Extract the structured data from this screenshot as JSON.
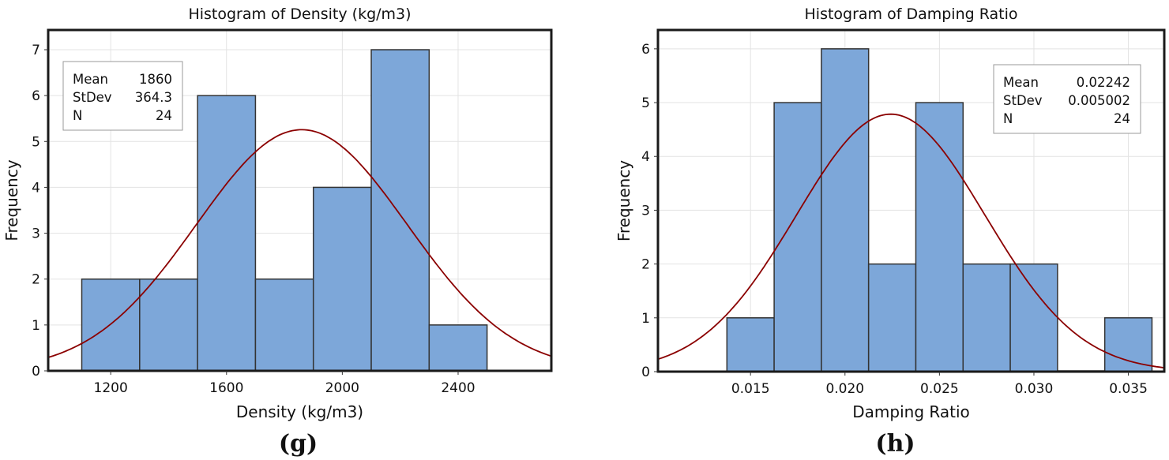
{
  "chart_data": [
    {
      "type": "bar",
      "title": "Histogram of Density (kg/m3)",
      "xlabel": "Density (kg/m3)",
      "ylabel": "Frequency",
      "panel_label": "(g)",
      "bin_centers": [
        1200,
        1400,
        1600,
        1800,
        2000,
        2200,
        2400
      ],
      "bin_width": 200,
      "values": [
        2,
        2,
        6,
        2,
        4,
        7,
        1
      ],
      "xlim": [
        984,
        2722
      ],
      "ylim": [
        0,
        7.43
      ],
      "xticks": [
        1200,
        1600,
        2000,
        2400
      ],
      "xtick_labels": [
        "1200",
        "1600",
        "2000",
        "2400"
      ],
      "yticks": [
        0,
        1,
        2,
        3,
        4,
        5,
        6,
        7
      ],
      "grid": true,
      "fit": "normal",
      "legend_placement": "top-left",
      "stats": [
        {
          "label": "Mean",
          "value": "1860"
        },
        {
          "label": "StDev",
          "value": "364.3"
        },
        {
          "label": "N",
          "value": "24"
        }
      ],
      "mean": 1860,
      "stdev": 364.3,
      "n": 24
    },
    {
      "type": "bar",
      "title": "Histogram of Damping Ratio",
      "xlabel": "Damping Ratio",
      "ylabel": "Frequency",
      "panel_label": "(h)",
      "bin_centers": [
        0.015,
        0.0175,
        0.02,
        0.0225,
        0.025,
        0.0275,
        0.03,
        0.0325,
        0.035
      ],
      "bin_width": 0.0025,
      "values": [
        1,
        5,
        6,
        2,
        5,
        2,
        2,
        0,
        1
      ],
      "xlim": [
        0.0101,
        0.0369
      ],
      "ylim": [
        0,
        6.35
      ],
      "xticks": [
        0.015,
        0.02,
        0.025,
        0.03,
        0.035
      ],
      "xtick_labels": [
        "0.015",
        "0.020",
        "0.025",
        "0.030",
        "0.035"
      ],
      "yticks": [
        0,
        1,
        2,
        3,
        4,
        5,
        6
      ],
      "grid": true,
      "fit": "normal",
      "legend_placement": "top-right",
      "stats": [
        {
          "label": "Mean",
          "value": "0.02242"
        },
        {
          "label": "StDev",
          "value": "0.005002"
        },
        {
          "label": "N",
          "value": "24"
        }
      ],
      "mean": 0.02242,
      "stdev": 0.005002,
      "n": 24
    }
  ],
  "colors": {
    "bar": "#7da7d9",
    "bar_edge": "#333333",
    "fit_line": "#8b0000",
    "grid": "#e3e3e3"
  }
}
